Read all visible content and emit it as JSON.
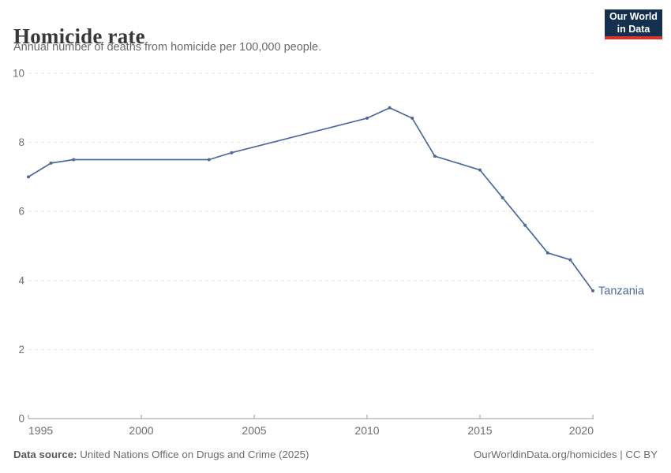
{
  "header": {
    "title": "Homicide rate",
    "subtitle": "Annual number of deaths from homicide per 100,000 people.",
    "logo": {
      "line1": "Our World",
      "line2": "in Data",
      "bg_color": "#15304e",
      "accent_color": "#d8352a"
    }
  },
  "chart_data": {
    "type": "line",
    "title": "Homicide rate",
    "subtitle": "Annual number of deaths from homicide per 100,000 people.",
    "xlabel": "",
    "ylabel": "",
    "xlim": [
      1995,
      2020
    ],
    "ylim": [
      0,
      10
    ],
    "x_ticks": [
      1995,
      2000,
      2005,
      2010,
      2015,
      2020
    ],
    "y_ticks": [
      0,
      2,
      4,
      6,
      8,
      10
    ],
    "grid": "horizontal-dashed",
    "gridline_color": "#e2e2e2",
    "axis_color": "#9a9a9a",
    "tick_label_color": "#6f6f6f",
    "legend_position": "end-of-line-label",
    "series": [
      {
        "name": "Tanzania",
        "color": "#4c6a9c",
        "points": [
          [
            1995,
            7.0
          ],
          [
            1996,
            7.4
          ],
          [
            1997,
            7.5
          ],
          [
            2003,
            7.5
          ],
          [
            2004,
            7.7
          ],
          [
            2010,
            8.7
          ],
          [
            2011,
            9.0
          ],
          [
            2012,
            8.7
          ],
          [
            2013,
            7.6
          ],
          [
            2015,
            7.2
          ],
          [
            2016,
            6.4
          ],
          [
            2017,
            5.6
          ],
          [
            2018,
            4.8
          ],
          [
            2019,
            4.6
          ],
          [
            2020,
            3.7
          ]
        ]
      }
    ]
  },
  "footer": {
    "source_label": "Data source:",
    "source_value": "United Nations Office on Drugs and Crime (2025)",
    "link": "OurWorldinData.org/homicides | CC BY"
  }
}
